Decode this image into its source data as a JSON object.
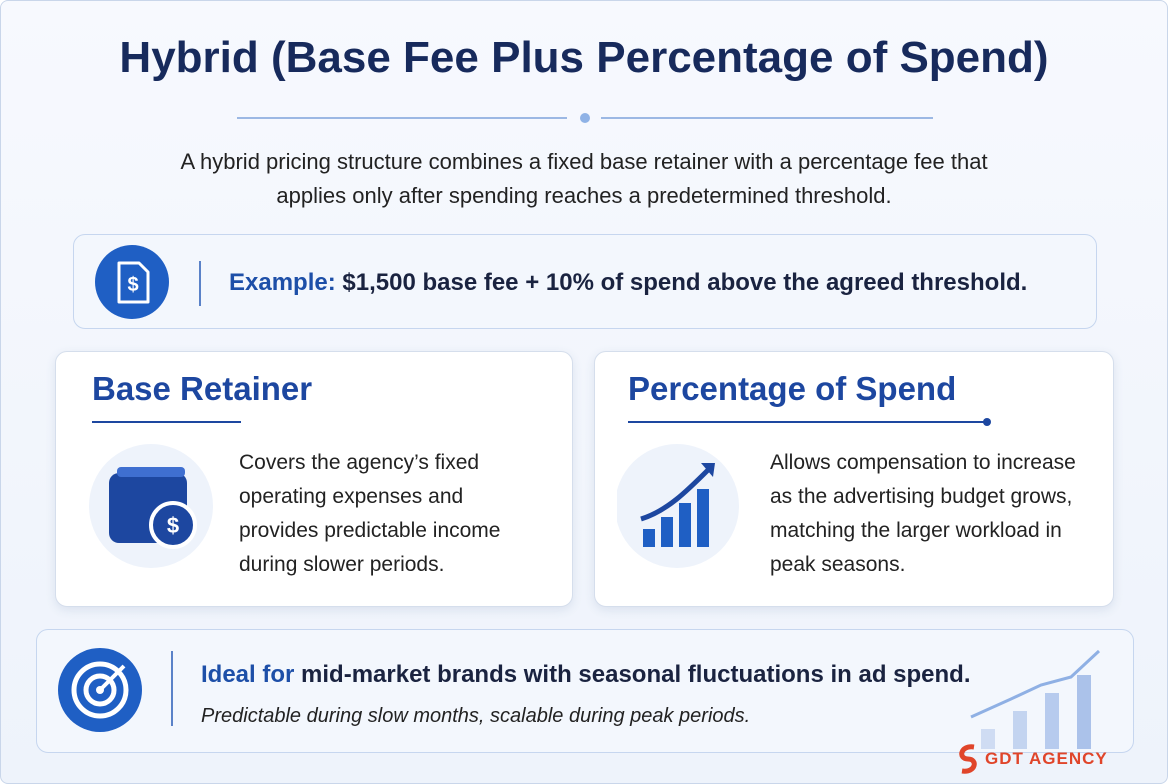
{
  "title": "Hybrid (Base Fee Plus Percentage of Spend)",
  "intro": "A hybrid pricing structure combines a fixed base retainer with a percentage fee that applies only after spending reaches a predetermined threshold.",
  "example": {
    "label": "Example:",
    "text": "$1,500 base fee + 10% of spend above the agreed threshold."
  },
  "cards": [
    {
      "title": "Base Retainer",
      "text": "Covers the agency’s fixed operating expenses and provides predictable income during slower periods."
    },
    {
      "title": "Percentage of Spend",
      "text": "Allows compensation to increase as the advertising budget grows, matching the larger workload in peak seasons."
    }
  ],
  "ideal": {
    "label": "Ideal for",
    "text": "mid-market brands with seasonal fluctuations in ad spend.",
    "note": "Predictable during slow months, scalable during peak periods."
  },
  "brand": "GDT AGENCY"
}
